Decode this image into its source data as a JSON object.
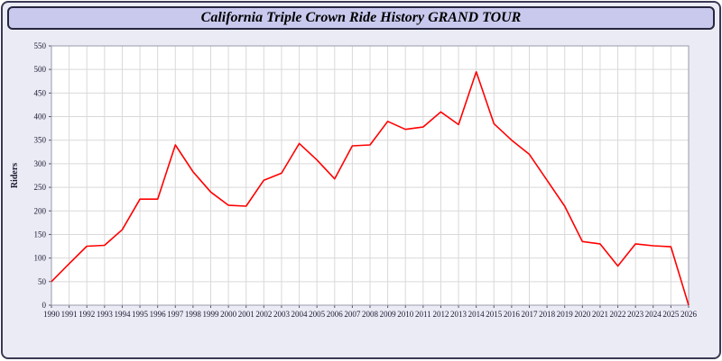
{
  "header": {
    "title": "California Triple Crown Ride History GRAND TOUR"
  },
  "chart_data": {
    "type": "line",
    "title": "California Triple Crown Ride History GRAND TOUR",
    "xlabel": "",
    "ylabel": "Riders",
    "ylim": [
      0,
      550
    ],
    "ytick_step": 50,
    "grid": true,
    "legend_position": "none",
    "line_color": "#ff0000",
    "grid_color": "#d9d9d9",
    "plot_bg": "#ffffff",
    "x": [
      1990,
      1991,
      1992,
      1993,
      1994,
      1995,
      1996,
      1997,
      1998,
      1999,
      2000,
      2001,
      2002,
      2003,
      2004,
      2005,
      2006,
      2007,
      2008,
      2009,
      2010,
      2011,
      2012,
      2013,
      2014,
      2015,
      2016,
      2017,
      2018,
      2019,
      2020,
      2021,
      2022,
      2023,
      2024,
      2025,
      2026
    ],
    "values": [
      50,
      88,
      125,
      127,
      160,
      225,
      225,
      340,
      283,
      240,
      212,
      210,
      265,
      280,
      343,
      308,
      268,
      338,
      340,
      390,
      373,
      378,
      410,
      383,
      495,
      385,
      350,
      320,
      265,
      210,
      135,
      130,
      83,
      130,
      126,
      124,
      0
    ]
  }
}
